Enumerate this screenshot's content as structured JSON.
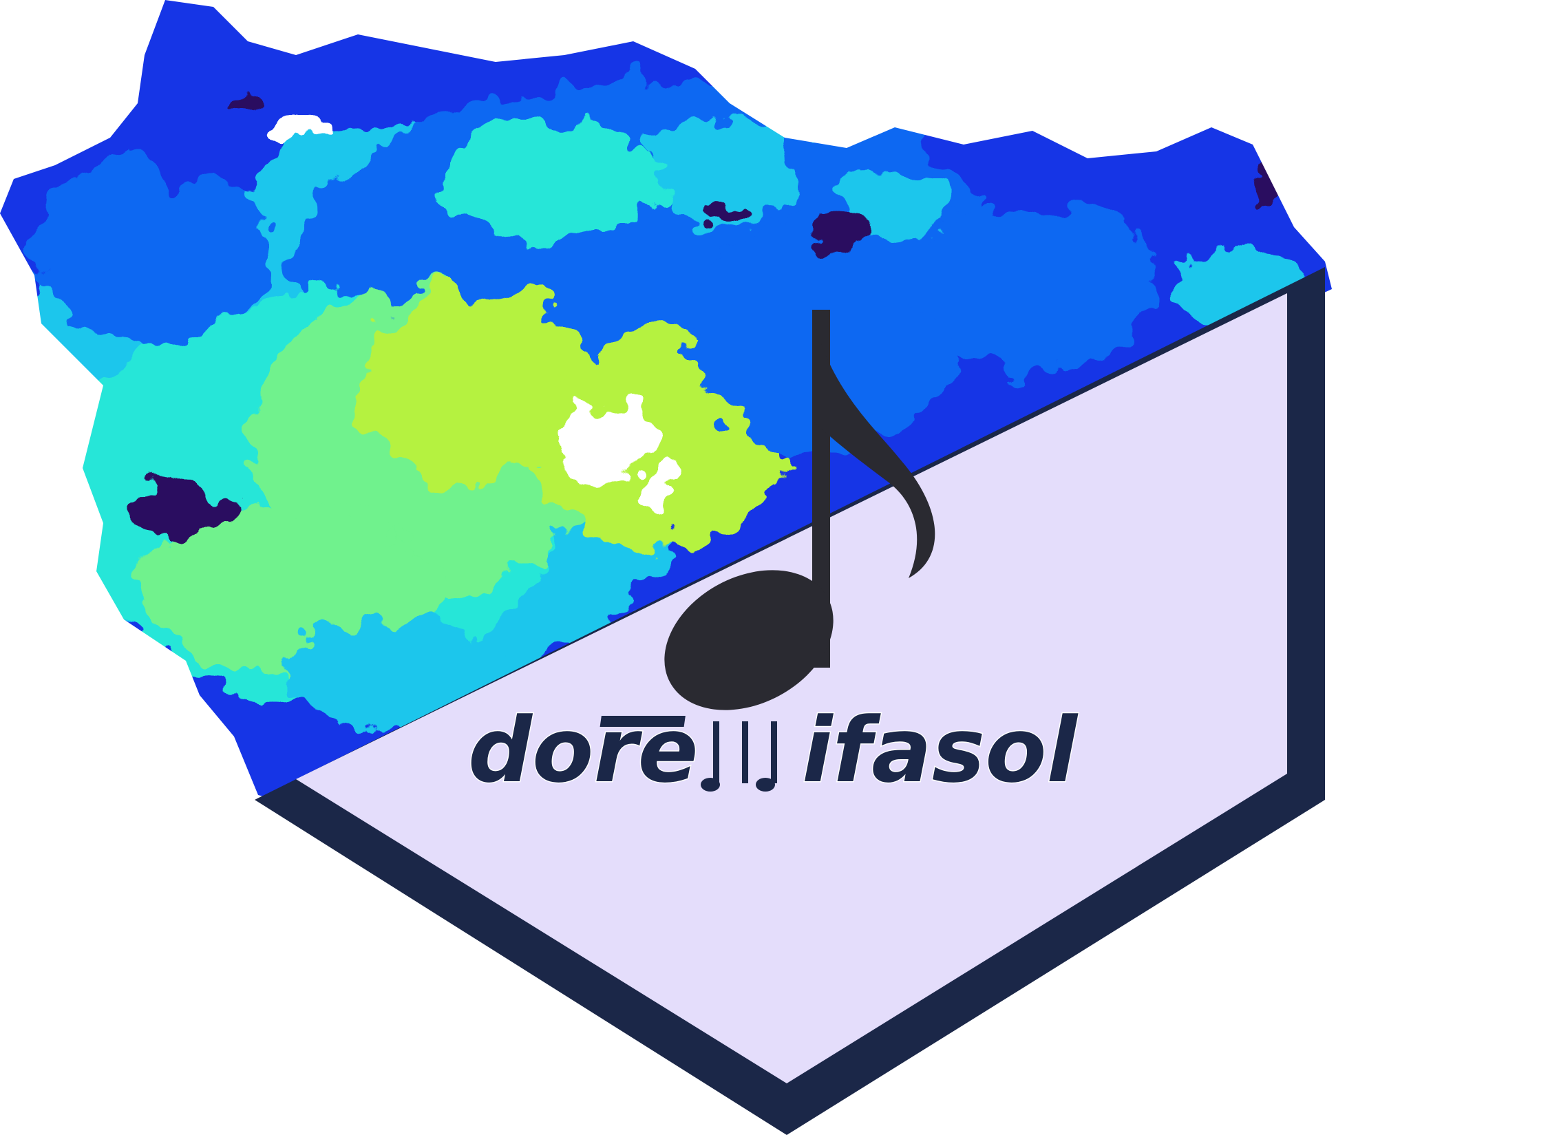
{
  "logo": {
    "wordmark_before": "dore",
    "wordmark_glyph": "beamed-notes-icon",
    "wordmark_after": "ifasol",
    "note_icon": "eighth-note-icon",
    "colors": {
      "hex_fill": "#e4ddfb",
      "hex_border": "#1b2748",
      "note": "#2a2a31",
      "text": "#1b2748",
      "map_palette": [
        "#1436e6",
        "#0b67f2",
        "#1ec6ec",
        "#26e6d8",
        "#6ff28d",
        "#b5f240",
        "#2a0a60"
      ]
    }
  }
}
